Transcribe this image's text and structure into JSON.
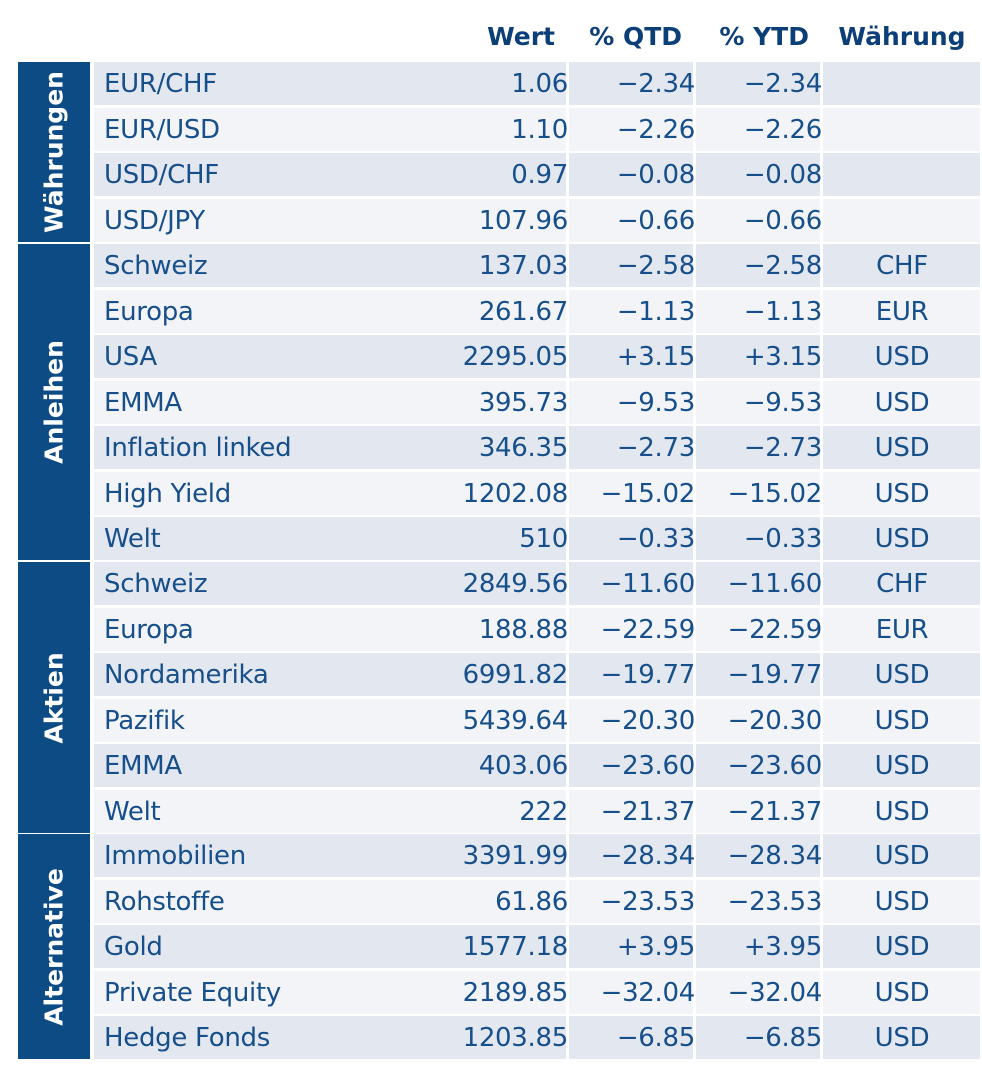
{
  "header": {
    "wert": "Wert",
    "qtd": "% QTD",
    "ytd": "% YTD",
    "waehrung": "Währung"
  },
  "sections": [
    {
      "label": "Währungen",
      "rows": [
        {
          "name": "EUR/CHF",
          "wert": "1.06",
          "qtd": "−2.34",
          "ytd": "−2.34",
          "cur": ""
        },
        {
          "name": "EUR/USD",
          "wert": "1.10",
          "qtd": "−2.26",
          "ytd": "−2.26",
          "cur": ""
        },
        {
          "name": "USD/CHF",
          "wert": "0.97",
          "qtd": "−0.08",
          "ytd": "−0.08",
          "cur": ""
        },
        {
          "name": "USD/JPY",
          "wert": "107.96",
          "qtd": "−0.66",
          "ytd": "−0.66",
          "cur": ""
        }
      ]
    },
    {
      "label": "Anleihen",
      "rows": [
        {
          "name": "Schweiz",
          "wert": "137.03",
          "qtd": "−2.58",
          "ytd": "−2.58",
          "cur": "CHF"
        },
        {
          "name": "Europa",
          "wert": "261.67",
          "qtd": "−1.13",
          "ytd": "−1.13",
          "cur": "EUR"
        },
        {
          "name": "USA",
          "wert": "2295.05",
          "qtd": "+3.15",
          "ytd": "+3.15",
          "cur": "USD"
        },
        {
          "name": "EMMA",
          "wert": "395.73",
          "qtd": "−9.53",
          "ytd": "−9.53",
          "cur": "USD"
        },
        {
          "name": "Inflation linked",
          "wert": "346.35",
          "qtd": "−2.73",
          "ytd": "−2.73",
          "cur": "USD"
        },
        {
          "name": "High Yield",
          "wert": "1202.08",
          "qtd": "−15.02",
          "ytd": "−15.02",
          "cur": "USD"
        },
        {
          "name": "Welt",
          "wert": "510",
          "qtd": "−0.33",
          "ytd": "−0.33",
          "cur": "USD"
        }
      ]
    },
    {
      "label": "Aktien",
      "rows": [
        {
          "name": "Schweiz",
          "wert": "2849.56",
          "qtd": "−11.60",
          "ytd": "−11.60",
          "cur": "CHF"
        },
        {
          "name": "Europa",
          "wert": "188.88",
          "qtd": "−22.59",
          "ytd": "−22.59",
          "cur": "EUR"
        },
        {
          "name": "Nordamerika",
          "wert": "6991.82",
          "qtd": "−19.77",
          "ytd": "−19.77",
          "cur": "USD"
        },
        {
          "name": "Pazifik",
          "wert": "5439.64",
          "qtd": "−20.30",
          "ytd": "−20.30",
          "cur": "USD"
        },
        {
          "name": "EMMA",
          "wert": "403.06",
          "qtd": "−23.60",
          "ytd": "−23.60",
          "cur": "USD"
        },
        {
          "name": "Welt",
          "wert": "222",
          "qtd": "−21.37",
          "ytd": "−21.37",
          "cur": "USD"
        }
      ]
    },
    {
      "label": "Alternative",
      "rows": [
        {
          "name": "Immobilien",
          "wert": "3391.99",
          "qtd": "−28.34",
          "ytd": "−28.34",
          "cur": "USD"
        },
        {
          "name": "Rohstoffe",
          "wert": "61.86",
          "qtd": "−23.53",
          "ytd": "−23.53",
          "cur": "USD"
        },
        {
          "name": "Gold",
          "wert": "1577.18",
          "qtd": "+3.95",
          "ytd": "+3.95",
          "cur": "USD"
        },
        {
          "name": "Private Equity",
          "wert": "2189.85",
          "qtd": "−32.04",
          "ytd": "−32.04",
          "cur": "USD"
        },
        {
          "name": "Hedge Fonds",
          "wert": "1203.85",
          "qtd": "−6.85",
          "ytd": "−6.85",
          "cur": "USD"
        }
      ]
    }
  ]
}
